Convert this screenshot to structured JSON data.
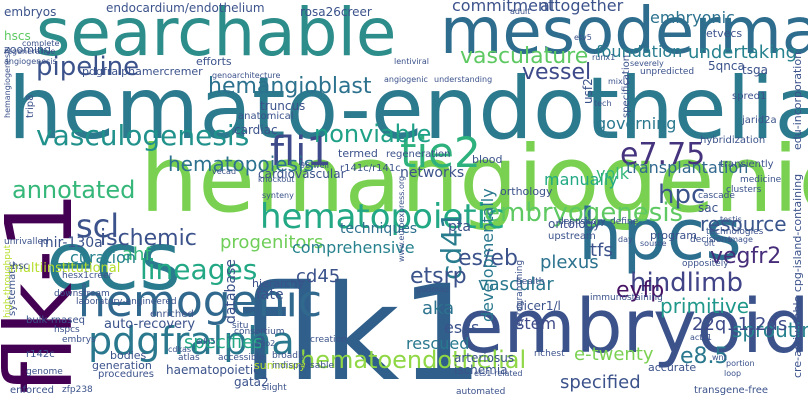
{
  "words": [
    {
      "text": "hemato-endothelial",
      "color": "#2b7a8e"
    },
    {
      "text": "flk1",
      "color": "#2f5f8a"
    },
    {
      "text": "hemangiogenic",
      "color": "#7ad151"
    },
    {
      "text": "searchable",
      "color": "#2c8d8a"
    },
    {
      "text": "mesodermal",
      "color": "#2e6d8e"
    },
    {
      "text": "ecs",
      "color": "#2a7b8e"
    },
    {
      "text": "hpcs",
      "color": "#2d6f8e"
    },
    {
      "text": "embryoid",
      "color": "#3b528b"
    },
    {
      "text": "flk-1",
      "color": "#440154"
    },
    {
      "text": "hematopoietic",
      "color": "#22a884"
    },
    {
      "text": "hemogenic",
      "color": "#31688e"
    },
    {
      "text": "pdgfralpha",
      "color": "#2a788e"
    },
    {
      "text": "tie2",
      "color": "#2db27d"
    },
    {
      "text": "fli1",
      "color": "#3e4a89"
    },
    {
      "text": "embryogenesis",
      "color": "#5ec962"
    },
    {
      "text": "lineages",
      "color": "#22a884"
    },
    {
      "text": "vasculogenesis",
      "color": "#21918c"
    },
    {
      "text": "pipeline",
      "color": "#3b528b"
    },
    {
      "text": "hematoendothelial",
      "color": "#8fd744"
    },
    {
      "text": "hindlimb",
      "color": "#414487"
    },
    {
      "text": "cd41",
      "color": "#287c8e"
    },
    {
      "text": "e7.75",
      "color": "#46337e"
    },
    {
      "text": "nonviable",
      "color": "#1fa187"
    },
    {
      "text": "scl",
      "color": "#3b528b"
    },
    {
      "text": "hemangioblast",
      "color": "#2c728e"
    },
    {
      "text": "annotated",
      "color": "#35b779"
    },
    {
      "text": "hpc",
      "color": "#3a538b"
    },
    {
      "text": "e8.5",
      "color": "#2a788e"
    },
    {
      "text": "es/eb",
      "color": "#3b528b"
    },
    {
      "text": "etsrp",
      "color": "#3b528b"
    },
    {
      "text": "vegfr2",
      "color": "#472c7a"
    },
    {
      "text": "eyfp",
      "color": "#471365"
    },
    {
      "text": "ischemic",
      "color": "#3b528b"
    },
    {
      "text": "sprouting",
      "color": "#26828e"
    },
    {
      "text": "resource",
      "color": "#39558c"
    },
    {
      "text": "hematopoiesis",
      "color": "#2c728e"
    },
    {
      "text": "vasculature",
      "color": "#5ec962"
    },
    {
      "text": "vessel",
      "color": "#3e4989"
    },
    {
      "text": "undertaking",
      "color": "#26828e"
    },
    {
      "text": "progenitors",
      "color": "#6ece58"
    },
    {
      "text": "vascular",
      "color": "#2a788e"
    },
    {
      "text": "22q11.2ds",
      "color": "#3e4a89"
    },
    {
      "text": "ahf",
      "color": "#35b779"
    },
    {
      "text": "curation",
      "color": "#26828e"
    },
    {
      "text": "cd45",
      "color": "#3b528b"
    },
    {
      "text": "primitive",
      "color": "#1f988b"
    },
    {
      "text": "specified",
      "color": "#3b528b"
    },
    {
      "text": "e-twenty",
      "color": "#7ad151"
    },
    {
      "text": "specifies",
      "color": "#22a884"
    },
    {
      "text": "plexus",
      "color": "#2c728e"
    },
    {
      "text": "manually",
      "color": "#22a884"
    },
    {
      "text": "governing",
      "color": "#2a788e"
    },
    {
      "text": "transplantation",
      "color": "#31688e"
    },
    {
      "text": "foundation",
      "color": "#287d8e"
    },
    {
      "text": "commitment",
      "color": "#3b528b"
    },
    {
      "text": "embryonic",
      "color": "#2c728e"
    },
    {
      "text": "altogether",
      "color": "#3b528b"
    },
    {
      "text": "comprehensive",
      "color": "#26828e"
    },
    {
      "text": "techniques",
      "color": "#2d708e"
    },
    {
      "text": "networks",
      "color": "#3b528b"
    },
    {
      "text": "aka",
      "color": "#2c728e"
    },
    {
      "text": "stem",
      "color": "#3e4989"
    },
    {
      "text": "escs",
      "color": "#3b528b"
    },
    {
      "text": "rescued",
      "color": "#2a788e"
    },
    {
      "text": "developmentally",
      "color": "#2a788e"
    },
    {
      "text": "yolk",
      "color": "#35b779"
    },
    {
      "text": "tfs",
      "color": "#3b528b"
    },
    {
      "text": "pta",
      "color": "#3b528b"
    },
    {
      "text": "fate",
      "color": "#3b528b"
    },
    {
      "text": "database",
      "color": "#3b528b"
    },
    {
      "text": "auto-recovery",
      "color": "#3b528b"
    },
    {
      "text": "multiinstitutional",
      "color": "#b5de2b"
    },
    {
      "text": "mir-130a",
      "color": "#3b528b"
    },
    {
      "text": "embryos",
      "color": "#3b528b"
    },
    {
      "text": "endocardium/endothelium",
      "color": "#3b528b"
    },
    {
      "text": "rosa26creer",
      "color": "#3b528b"
    },
    {
      "text": "etvecs",
      "color": "#3b528b"
    },
    {
      "text": "hscs",
      "color": "#5ec962"
    },
    {
      "text": "zooming",
      "color": "#3b528b"
    },
    {
      "text": "pdgfralphamercremer",
      "color": "#3b528b"
    },
    {
      "text": "efforts",
      "color": "#3b528b"
    },
    {
      "text": "truncus",
      "color": "#3b528b"
    },
    {
      "text": "5qnca",
      "color": "#3b528b"
    },
    {
      "text": "tsga",
      "color": "#3b528b"
    },
    {
      "text": "cardiac",
      "color": "#3b528b"
    },
    {
      "text": "cardiovascular",
      "color": "#3b528b"
    },
    {
      "text": "anatomical",
      "color": "#3b528b"
    },
    {
      "text": "dicer1/l",
      "color": "#3b528b"
    },
    {
      "text": "arteriosus",
      "color": "#3b528b"
    },
    {
      "text": "ischemia",
      "color": "#3b528b"
    },
    {
      "text": "haematopoietic",
      "color": "#3b528b"
    },
    {
      "text": "gata2",
      "color": "#3b528b"
    },
    {
      "text": "summary",
      "color": "#b5de2b"
    },
    {
      "text": "enriched",
      "color": "#3b528b"
    },
    {
      "text": "bodies",
      "color": "#3b528b"
    },
    {
      "text": "generation",
      "color": "#3b528b"
    },
    {
      "text": "procedures",
      "color": "#3b528b"
    },
    {
      "text": "enforced",
      "color": "#3b528b"
    },
    {
      "text": "transgene-free",
      "color": "#3b528b"
    },
    {
      "text": "hierarchy",
      "color": "#3b528b"
    },
    {
      "text": "ontology",
      "color": "#3b528b"
    },
    {
      "text": "orthology",
      "color": "#3b528b"
    },
    {
      "text": "blood",
      "color": "#3b528b"
    },
    {
      "text": "termed",
      "color": "#3b528b"
    },
    {
      "text": "r141c/r141c",
      "color": "#3b528b"
    },
    {
      "text": "upstream",
      "color": "#3b528b"
    },
    {
      "text": "program",
      "color": "#3b528b"
    },
    {
      "text": "cascade",
      "color": "#3b528b"
    },
    {
      "text": "accurate",
      "color": "#3b528b"
    },
    {
      "text": "systematic",
      "color": "#3b528b"
    },
    {
      "text": "bulk-rnaseq",
      "color": "#3b528b"
    },
    {
      "text": "r142c",
      "color": "#3b528b"
    },
    {
      "text": "hsc",
      "color": "#3b528b"
    },
    {
      "text": "regeneration",
      "color": "#3b528b"
    },
    {
      "text": "trip8",
      "color": "#3b528b"
    },
    {
      "text": "usf2",
      "color": "#3b528b"
    },
    {
      "text": "specification",
      "color": "#3b528b"
    },
    {
      "text": "cre-activatable cpg-island-containing",
      "color": "#3b528b"
    },
    {
      "text": "edu-incorporation",
      "color": "#3b528b"
    },
    {
      "text": "spred1",
      "color": "#3b528b"
    },
    {
      "text": "hybridization",
      "color": "#3b528b"
    },
    {
      "text": "transiently",
      "color": "#3b528b"
    },
    {
      "text": "jarid2a",
      "color": "#3b528b"
    },
    {
      "text": "medicine",
      "color": "#3b528b"
    },
    {
      "text": "unpredicted",
      "color": "#3b528b"
    },
    {
      "text": "technologies",
      "color": "#3b528b"
    },
    {
      "text": "oppositely",
      "color": "#3b528b"
    },
    {
      "text": "immunostaining",
      "color": "#3b528b"
    },
    {
      "text": "reprogramming",
      "color": "#3b528b"
    },
    {
      "text": "health",
      "color": "#3b528b"
    },
    {
      "text": "richest",
      "color": "#3b528b"
    },
    {
      "text": "decisions",
      "color": "#3b528b"
    },
    {
      "text": "clusters",
      "color": "#3b528b"
    },
    {
      "text": "depository",
      "color": "#3b528b"
    },
    {
      "text": "define",
      "color": "#3b528b"
    },
    {
      "text": "situ",
      "color": "#3b528b"
    },
    {
      "text": "creation",
      "color": "#3b528b"
    },
    {
      "text": "consortium",
      "color": "#3b528b"
    },
    {
      "text": "atlas",
      "color": "#3b528b"
    },
    {
      "text": "accessible",
      "color": "#3b528b"
    },
    {
      "text": "broadly",
      "color": "#3b528b"
    },
    {
      "text": "indispensable",
      "color": "#3b528b"
    },
    {
      "text": "automated",
      "color": "#3b528b"
    },
    {
      "text": "slight",
      "color": "#3b528b"
    },
    {
      "text": "zfp238",
      "color": "#3b528b"
    },
    {
      "text": "genome",
      "color": "#3b528b"
    },
    {
      "text": "hspcs",
      "color": "#3b528b"
    },
    {
      "text": "embrys",
      "color": "#3b528b"
    },
    {
      "text": "downstream",
      "color": "#3b528b"
    },
    {
      "text": "laboratory-engineered",
      "color": "#3b528b"
    },
    {
      "text": "hesx1creer",
      "color": "#3b528b"
    },
    {
      "text": "high-throughput",
      "color": "#b5de2b"
    },
    {
      "text": "unrivalled",
      "color": "#3b528b"
    },
    {
      "text": "regenerative",
      "color": "#3b528b"
    },
    {
      "text": "angiogenesis",
      "color": "#3b528b"
    },
    {
      "text": "complete",
      "color": "#3b528b"
    },
    {
      "text": "hemangiogenesis",
      "color": "#3b528b"
    },
    {
      "text": "genoarchitecture",
      "color": "#3b528b"
    },
    {
      "text": "lentiviral",
      "color": "#3b528b"
    },
    {
      "text": "understanding",
      "color": "#3b528b"
    },
    {
      "text": "angiogenic",
      "color": "#3b528b"
    },
    {
      "text": "runx1",
      "color": "#3b528b"
    },
    {
      "text": "severely",
      "color": "#3b528b"
    },
    {
      "text": "knockout",
      "color": "#3b528b"
    },
    {
      "text": "vecad",
      "color": "#3b528b"
    },
    {
      "text": "96-well",
      "color": "#3b528b"
    },
    {
      "text": "cdh5",
      "color": "#3b528b"
    },
    {
      "text": "spo2",
      "color": "#3b528b"
    },
    {
      "text": "loop",
      "color": "#3b528b"
    },
    {
      "text": "wnt",
      "color": "#3b528b"
    },
    {
      "text": "portion",
      "color": "#3b528b"
    },
    {
      "text": "actc1",
      "color": "#3b528b"
    },
    {
      "text": "cdkas",
      "color": "#3b528b"
    },
    {
      "text": "etv5",
      "color": "#3b528b"
    },
    {
      "text": "adult",
      "color": "#3b528b"
    },
    {
      "text": "www.euroexpress.org",
      "color": "#3b528b"
    },
    {
      "text": "gudmap",
      "color": "#3b528b"
    },
    {
      "text": "ets1-related",
      "color": "#3b528b"
    },
    {
      "text": "testis",
      "color": "#3b528b"
    },
    {
      "text": "day",
      "color": "#3b528b"
    },
    {
      "text": "source",
      "color": "#3b528b"
    },
    {
      "text": "oft",
      "color": "#3b528b"
    },
    {
      "text": "image",
      "color": "#3b528b"
    },
    {
      "text": "mixl1",
      "color": "#3b528b"
    },
    {
      "text": "synteny",
      "color": "#3b528b"
    },
    {
      "text": "tech",
      "color": "#3b528b"
    },
    {
      "text": "sac",
      "color": "#3b528b"
    }
  ]
}
